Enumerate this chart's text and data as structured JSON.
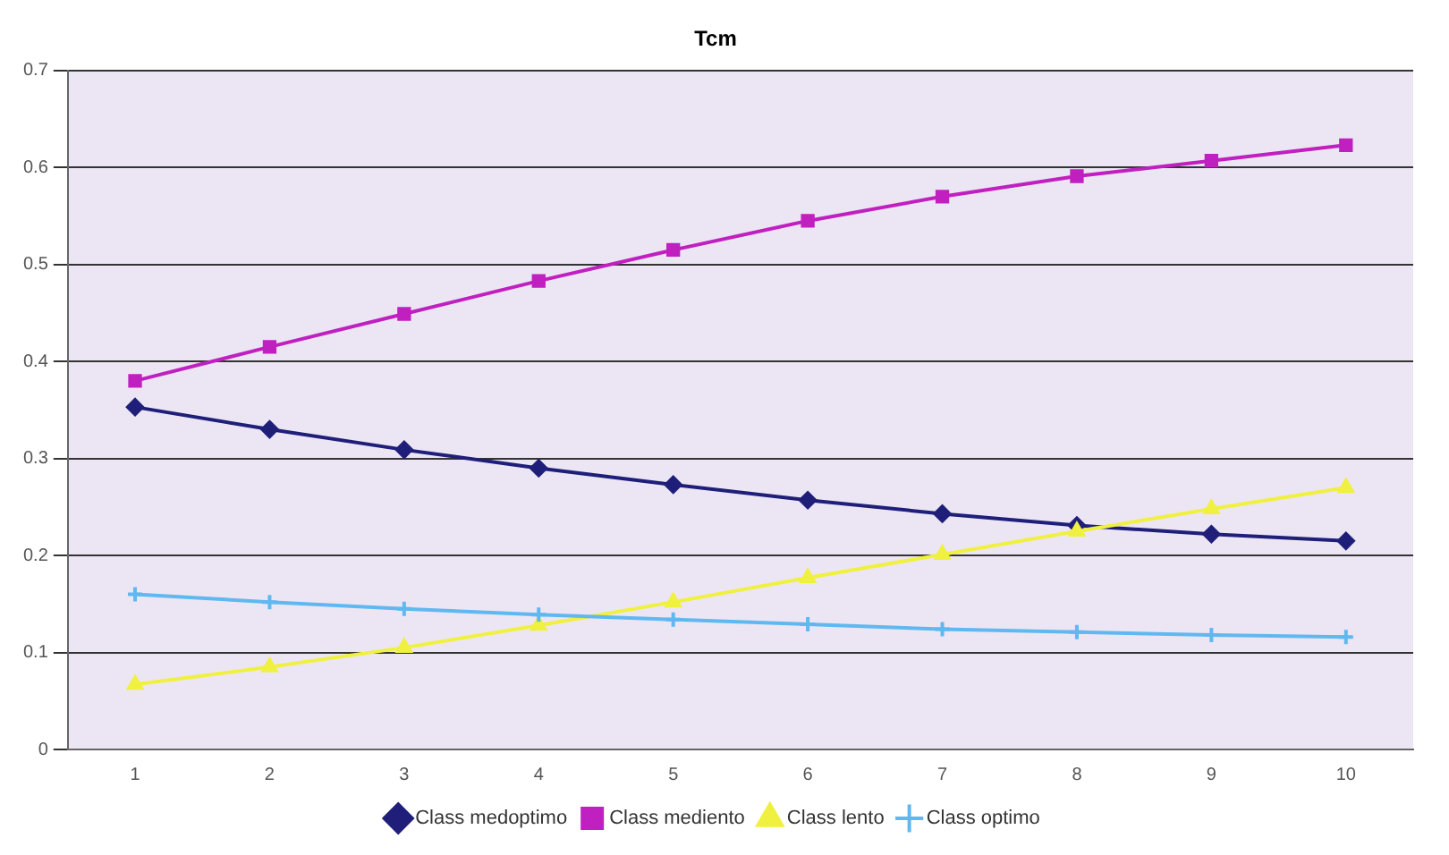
{
  "chart_data": {
    "type": "line",
    "title": "Tcm",
    "categories": [
      "1",
      "2",
      "3",
      "4",
      "5",
      "6",
      "7",
      "8",
      "9",
      "10"
    ],
    "series": [
      {
        "name": "Class medoptimo",
        "color": "#1f1f7a",
        "marker": "diamond",
        "values": [
          0.353,
          0.33,
          0.309,
          0.29,
          0.273,
          0.257,
          0.243,
          0.231,
          0.222,
          0.215
        ]
      },
      {
        "name": "Class mediento",
        "color": "#c020c0",
        "marker": "square",
        "values": [
          0.38,
          0.415,
          0.449,
          0.483,
          0.515,
          0.545,
          0.57,
          0.591,
          0.607,
          0.623
        ]
      },
      {
        "name": "Class lento",
        "color": "#f0f040",
        "marker": "triangle",
        "values": [
          0.067,
          0.085,
          0.105,
          0.128,
          0.152,
          0.177,
          0.201,
          0.225,
          0.248,
          0.27
        ]
      },
      {
        "name": "Class optimo",
        "color": "#60b8f0",
        "marker": "cross",
        "values": [
          0.16,
          0.152,
          0.145,
          0.139,
          0.134,
          0.129,
          0.124,
          0.121,
          0.118,
          0.116
        ]
      }
    ],
    "ylim": [
      0,
      0.7
    ],
    "yticks": [
      0,
      0.1,
      0.2,
      0.3,
      0.4,
      0.5,
      0.6,
      0.7
    ],
    "grid": "y",
    "legend": "bottom"
  }
}
